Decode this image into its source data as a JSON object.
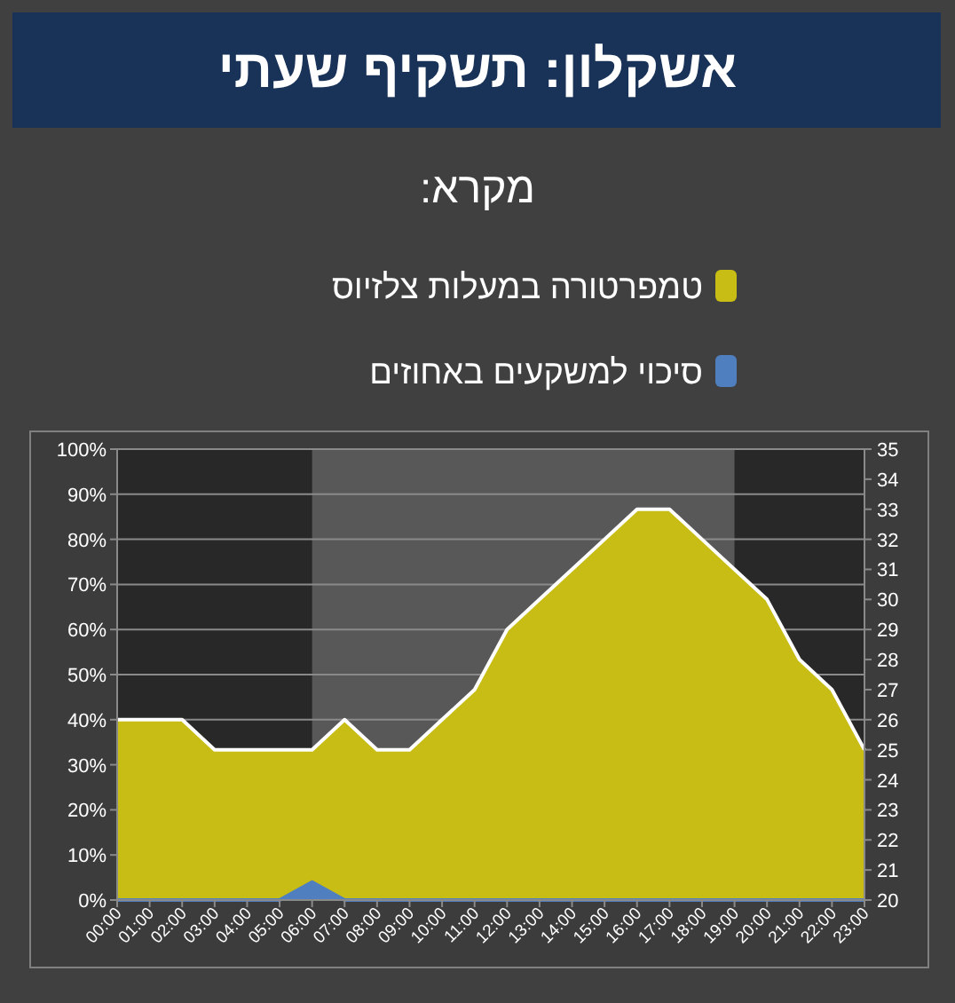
{
  "chart_data": {
    "type": "area",
    "title": "אשקלון: תשקיף שעתי",
    "legend_title": "מקרא:",
    "categories": [
      "00:00",
      "01:00",
      "02:00",
      "03:00",
      "04:00",
      "05:00",
      "06:00",
      "07:00",
      "08:00",
      "09:00",
      "10:00",
      "11:00",
      "12:00",
      "13:00",
      "14:00",
      "15:00",
      "16:00",
      "17:00",
      "18:00",
      "19:00",
      "20:00",
      "21:00",
      "22:00",
      "23:00"
    ],
    "series": [
      {
        "name": "טמפרטורה במעלות צלזיוס",
        "color": "#c8bd14",
        "axis": "y2",
        "values": [
          26,
          26,
          26,
          25,
          25,
          25,
          25,
          26,
          25,
          25,
          26,
          27,
          29,
          30,
          31,
          32,
          33,
          33,
          32,
          31,
          30,
          28,
          27,
          25
        ]
      },
      {
        "name": "סיכוי למשקעים באחוזים",
        "color": "#4f7fbf",
        "values": [
          0,
          0,
          0,
          0,
          0,
          0,
          4,
          0,
          0,
          0,
          0,
          0,
          0,
          0,
          0,
          0,
          0,
          0,
          0,
          0,
          0,
          0,
          0,
          0
        ]
      }
    ],
    "ylim": [
      0,
      100
    ],
    "yticks": [
      {
        "value": 0,
        "label": "0%"
      },
      {
        "value": 10,
        "label": "10%"
      },
      {
        "value": 20,
        "label": "20%"
      },
      {
        "value": 30,
        "label": "30%"
      },
      {
        "value": 40,
        "label": "40%"
      },
      {
        "value": 50,
        "label": "50%"
      },
      {
        "value": 60,
        "label": "60%"
      },
      {
        "value": 70,
        "label": "70%"
      },
      {
        "value": 80,
        "label": "80%"
      },
      {
        "value": 90,
        "label": "90%"
      },
      {
        "value": 100,
        "label": "100%"
      }
    ],
    "y2lim": [
      20,
      35
    ],
    "y2ticks": [
      20,
      21,
      22,
      23,
      24,
      25,
      26,
      27,
      28,
      29,
      30,
      31,
      32,
      33,
      34,
      35
    ],
    "grid": "y",
    "legend": "top",
    "bands": [
      {
        "axis": "x",
        "from": "00:00",
        "to": "06:00",
        "color": "#282828"
      },
      {
        "axis": "x",
        "from": "19:00",
        "to": "23:00",
        "color": "#282828"
      }
    ]
  }
}
